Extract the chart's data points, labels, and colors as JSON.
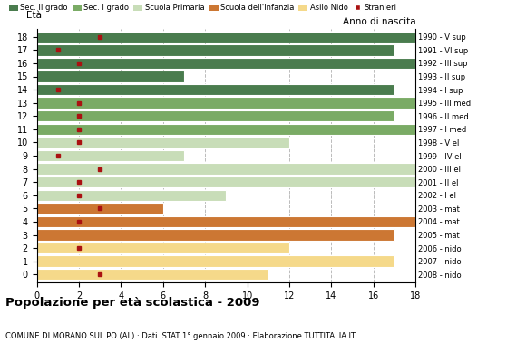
{
  "ages": [
    18,
    17,
    16,
    15,
    14,
    13,
    12,
    11,
    10,
    9,
    8,
    7,
    6,
    5,
    4,
    3,
    2,
    1,
    0
  ],
  "bar_values": [
    18,
    17,
    18,
    7,
    17,
    18,
    17,
    18,
    12,
    7,
    18,
    18,
    9,
    6,
    18,
    17,
    12,
    17,
    11
  ],
  "stranieri": [
    3,
    1,
    2,
    0,
    1,
    2,
    2,
    2,
    2,
    1,
    3,
    2,
    2,
    3,
    2,
    0,
    2,
    0,
    3
  ],
  "bar_colors": [
    "#4a7c4e",
    "#4a7c4e",
    "#4a7c4e",
    "#4a7c4e",
    "#4a7c4e",
    "#7aab65",
    "#7aab65",
    "#7aab65",
    "#c8ddb8",
    "#c8ddb8",
    "#c8ddb8",
    "#c8ddb8",
    "#c8ddb8",
    "#cc7733",
    "#cc7733",
    "#cc7733",
    "#f5d98a",
    "#f5d98a",
    "#f5d98a"
  ],
  "anno_nascita": [
    "1990 - V sup",
    "1991 - VI sup",
    "1992 - III sup",
    "1993 - II sup",
    "1994 - I sup",
    "1995 - III med",
    "1996 - II med",
    "1997 - I med",
    "1998 - V el",
    "1999 - IV el",
    "2000 - III el",
    "2001 - II el",
    "2002 - I el",
    "2003 - mat",
    "2004 - mat",
    "2005 - mat",
    "2006 - nido",
    "2007 - nido",
    "2008 - nido"
  ],
  "legend_labels": [
    "Sec. II grado",
    "Sec. I grado",
    "Scuola Primaria",
    "Scuola dell'Infanzia",
    "Asilo Nido",
    "Stranieri"
  ],
  "legend_colors": [
    "#4a7c4e",
    "#7aab65",
    "#c8ddb8",
    "#cc7733",
    "#f5d98a",
    "#aa1111"
  ],
  "title": "Popolazione per età scolastica - 2009",
  "subtitle": "COMUNE DI MORANO SUL PO (AL) · Dati ISTAT 1° gennaio 2009 · Elaborazione TUTTITALIA.IT",
  "xlabel_eta": "Età",
  "xlabel_anno": "Anno di nascita",
  "xlim": [
    0,
    18
  ],
  "stranieri_color": "#aa1111",
  "bar_height": 0.85,
  "background_color": "#ffffff",
  "grid_color": "#aaaaaa"
}
